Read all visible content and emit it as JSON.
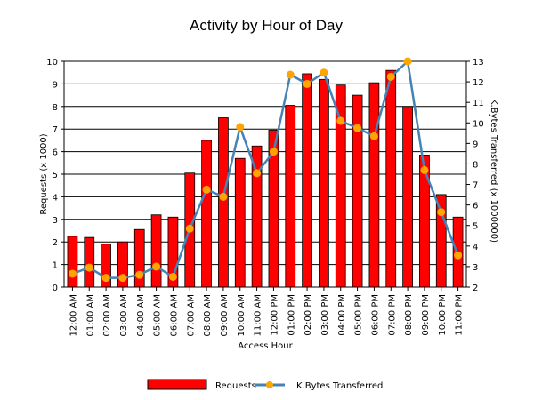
{
  "chart_data": {
    "type": "bar",
    "title": "Activity by Hour of Day",
    "xlabel": "Access Hour",
    "ylabel": "Requests (x 1000)",
    "y2label": "K.Bytes Transferred (x 1000000)",
    "ylim": [
      0,
      10
    ],
    "y2lim": [
      2,
      13
    ],
    "yticks": [
      "0",
      "1",
      "2",
      "3",
      "4",
      "5",
      "6",
      "7",
      "8",
      "9",
      "10"
    ],
    "y2ticks": [
      "2",
      "3",
      "4",
      "5",
      "6",
      "7",
      "8",
      "9",
      "10",
      "11",
      "12",
      "13"
    ],
    "grid": true,
    "legend_position": "bottom",
    "categories": [
      "12:00 AM",
      "01:00 AM",
      "02:00 AM",
      "03:00 AM",
      "04:00 AM",
      "05:00 AM",
      "06:00 AM",
      "07:00 AM",
      "08:00 AM",
      "09:00 AM",
      "10:00 AM",
      "11:00 AM",
      "12:00 PM",
      "01:00 PM",
      "02:00 PM",
      "03:00 PM",
      "04:00 PM",
      "05:00 PM",
      "06:00 PM",
      "07:00 PM",
      "08:00 PM",
      "09:00 PM",
      "10:00 PM",
      "11:00 PM"
    ],
    "series": [
      {
        "name": "Requests",
        "type": "bar",
        "axis": "left",
        "color": "#ff0000",
        "values": [
          2.25,
          2.2,
          1.9,
          2.0,
          2.55,
          3.2,
          3.1,
          5.05,
          6.5,
          7.5,
          5.7,
          6.25,
          6.95,
          8.05,
          9.45,
          9.2,
          8.95,
          8.5,
          9.05,
          9.6,
          8.0,
          5.85,
          4.1,
          3.1
        ]
      },
      {
        "name": "K.Bytes Transferred",
        "type": "line",
        "axis": "right",
        "color": "#4682b4",
        "marker_color": "#ffa500",
        "values": [
          2.65,
          2.95,
          2.45,
          2.45,
          2.6,
          3.0,
          2.5,
          4.85,
          6.75,
          6.4,
          9.8,
          7.55,
          8.6,
          12.35,
          11.9,
          12.45,
          10.1,
          9.75,
          9.35,
          12.25,
          13.0,
          7.7,
          5.65,
          3.55
        ]
      }
    ]
  }
}
